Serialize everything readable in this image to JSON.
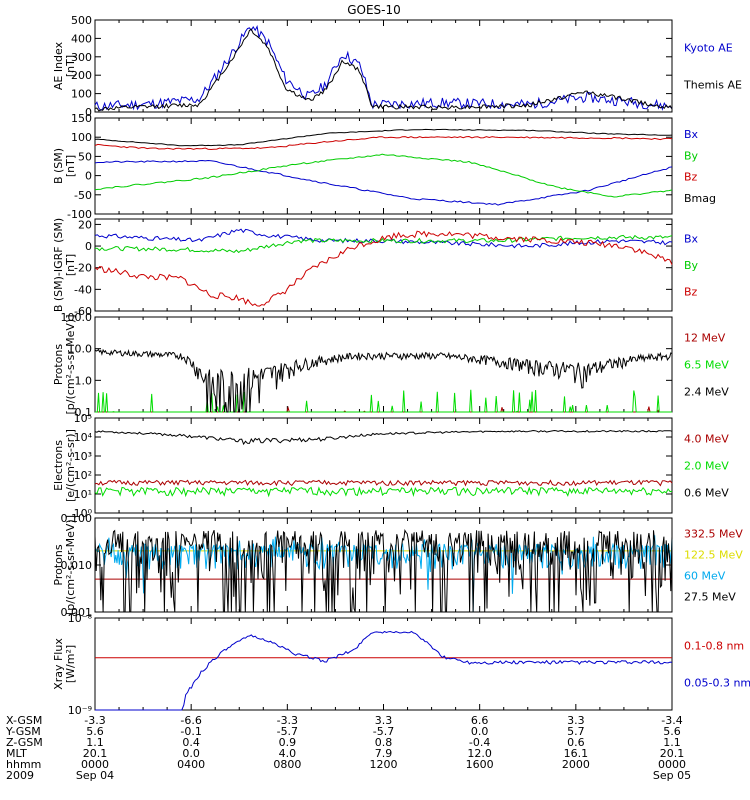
{
  "title": "GOES-10",
  "chart_data": [
    {
      "type": "line",
      "ylabel": [
        "AE Index",
        "[nT]"
      ],
      "yticks": [
        "0",
        "100",
        "200",
        "300",
        "400",
        "500"
      ],
      "ylim": [
        0,
        500
      ],
      "series": [
        {
          "name": "Kyoto AE",
          "color": "#0000cc"
        },
        {
          "name": "Themis AE",
          "color": "#000000"
        }
      ]
    },
    {
      "type": "line",
      "ylabel": [
        "B (SM)",
        "[nT]"
      ],
      "yticks": [
        "-100",
        "-50",
        "0",
        "50",
        "100",
        "150"
      ],
      "ylim": [
        -100,
        150
      ],
      "series": [
        {
          "name": "Bx",
          "color": "#0000cc"
        },
        {
          "name": "By",
          "color": "#00cc00"
        },
        {
          "name": "Bz",
          "color": "#cc0000"
        },
        {
          "name": "Bmag",
          "color": "#000000"
        }
      ]
    },
    {
      "type": "line",
      "ylabel": [
        "B (SM)-IGRF (SM)",
        "[nT]"
      ],
      "yticks": [
        "-60",
        "-40",
        "-20",
        "0",
        "20"
      ],
      "ylim": [
        -60,
        25
      ],
      "series": [
        {
          "name": "Bx",
          "color": "#0000cc"
        },
        {
          "name": "By",
          "color": "#00cc00"
        },
        {
          "name": "Bz",
          "color": "#cc0000"
        }
      ]
    },
    {
      "type": "line",
      "log": true,
      "ylabel": [
        "Protons",
        "[p/(cm²-s-sr-MeV)]"
      ],
      "yticks": [
        "0.1",
        "1.0",
        "10.0",
        "100.0"
      ],
      "ylim": [
        0.1,
        100
      ],
      "series": [
        {
          "name": "12 MeV",
          "color": "#aa0000"
        },
        {
          "name": "6.5 MeV",
          "color": "#00dd00"
        },
        {
          "name": "2.4 MeV",
          "color": "#000000"
        }
      ]
    },
    {
      "type": "line",
      "log": true,
      "ylabel": [
        "Electrons",
        "[e/(cm²-s-sr)]"
      ],
      "yticks": [
        "10⁰",
        "10¹",
        "10²",
        "10³",
        "10⁴",
        "10⁵"
      ],
      "ylim": [
        1,
        100000
      ],
      "series": [
        {
          "name": "4.0 MeV",
          "color": "#aa0000"
        },
        {
          "name": "2.0 MeV",
          "color": "#00dd00"
        },
        {
          "name": "0.6 MeV",
          "color": "#000000"
        }
      ]
    },
    {
      "type": "line",
      "log": true,
      "ylabel": [
        "Protons",
        "[p/(cm²-s-sr-MeV)]"
      ],
      "yticks": [
        "0.001",
        "0.010",
        "0.100"
      ],
      "ylim": [
        0.001,
        0.1
      ],
      "series": [
        {
          "name": "332.5 MeV",
          "color": "#aa0000"
        },
        {
          "name": "122.5 MeV",
          "color": "#dddd00"
        },
        {
          "name": "60 MeV",
          "color": "#00aaee"
        },
        {
          "name": "27.5 MeV",
          "color": "#000000"
        }
      ]
    },
    {
      "type": "line",
      "log": true,
      "ylabel": [
        "Xray Flux",
        "[W/m²]"
      ],
      "yticks": [
        "10⁻⁹",
        "10⁻⁸"
      ],
      "ylim": [
        1e-09,
        1e-08
      ],
      "series": [
        {
          "name": "0.1-0.8 nm",
          "color": "#cc0000"
        },
        {
          "name": "0.05-0.3 nm",
          "color": "#0000cc"
        }
      ]
    }
  ],
  "footer": {
    "rows": [
      {
        "label": "X-GSM",
        "values": [
          "-3.3",
          "-6.6",
          "-3.3",
          "3.3",
          "6.6",
          "3.3",
          "-3.4"
        ]
      },
      {
        "label": "Y-GSM",
        "values": [
          "5.6",
          "-0.1",
          "-5.7",
          "-5.7",
          "0.0",
          "5.7",
          "5.6"
        ]
      },
      {
        "label": "Z-GSM",
        "values": [
          "1.1",
          "0.4",
          "0.9",
          "0.8",
          "-0.4",
          "0.6",
          "1.1"
        ]
      },
      {
        "label": "MLT",
        "values": [
          "20.1",
          "0.0",
          "4.0",
          "7.9",
          "12.0",
          "16.1",
          "20.1"
        ]
      },
      {
        "label": "hhmm",
        "values": [
          "0000",
          "0400",
          "0800",
          "1200",
          "1600",
          "2000",
          "0000"
        ]
      },
      {
        "label": "2009",
        "values": [
          "Sep 04",
          "",
          "",
          "",
          "",
          "",
          "Sep 05"
        ]
      }
    ]
  }
}
